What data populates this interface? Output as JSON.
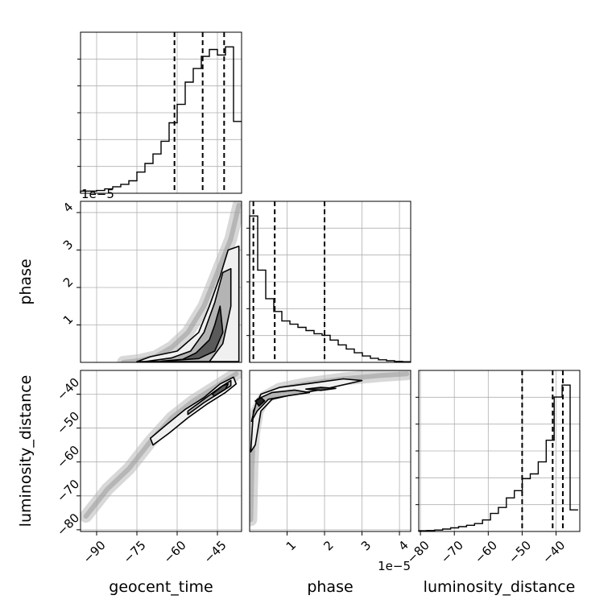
{
  "chart_data": {
    "type": "corner",
    "parameters": [
      "geocent_time",
      "phase",
      "luminosity_distance"
    ],
    "axis_labels": {
      "geocent_time": "geocent_time",
      "phase": "phase",
      "luminosity_distance": "luminosity_distance"
    },
    "ranges": {
      "geocent_time": [
        -96,
        -36
      ],
      "phase": [
        0,
        4.3e-05
      ],
      "luminosity_distance": [
        -80.5,
        -33
      ]
    },
    "ticks": {
      "geocent_time": [
        -90,
        -75,
        -60,
        -45
      ],
      "phase": [
        1e-05,
        2e-05,
        3e-05,
        4e-05
      ],
      "luminosity_distance": [
        -80,
        -70,
        -60,
        -50,
        -40
      ]
    },
    "tick_labels": {
      "geocent_time": [
        "−90",
        "−75",
        "−60",
        "−45"
      ],
      "phase": [
        "1",
        "2",
        "3",
        "4"
      ],
      "luminosity_distance": [
        "−80",
        "−70",
        "−60",
        "−50",
        "−40"
      ]
    },
    "offset_labels": {
      "phase_x": "1e−5",
      "phase_y": "1e−5"
    },
    "quantiles": {
      "geocent_time": [
        -61,
        -50.5,
        -42.5
      ],
      "phase": [
        1e-06,
        6.7e-06,
        2e-05
      ],
      "luminosity_distance": [
        -50,
        -41,
        -38
      ]
    },
    "histograms": {
      "geocent_time": {
        "edges": [
          -96,
          -93,
          -90,
          -87,
          -84,
          -81,
          -78,
          -75,
          -72,
          -69,
          -66,
          -63,
          -60,
          -57,
          -54,
          -51,
          -48,
          -45,
          -42,
          -39,
          -36
        ],
        "counts": [
          0.8,
          0.8,
          1.0,
          1.6,
          2.4,
          3.3,
          4.6,
          7.8,
          11.0,
          14.5,
          19.2,
          26.0,
          32.8,
          41.0,
          46.0,
          50.5,
          53.0,
          51.0,
          54.0,
          26.5
        ]
      },
      "phase": {
        "edges": [
          0,
          2.15e-06,
          4.3e-06,
          6.45e-06,
          8.6e-06,
          1.075e-05,
          1.29e-05,
          1.505e-05,
          1.72e-05,
          1.935e-05,
          2.15e-05,
          2.365e-05,
          2.58e-05,
          2.795e-05,
          3.01e-05,
          3.225e-05,
          3.44e-05,
          3.655e-05,
          3.87e-05,
          4.085e-05,
          4.3e-05
        ],
        "counts": [
          46.0,
          29.0,
          20.0,
          16.0,
          13.0,
          12.0,
          11.0,
          10.0,
          9.0,
          8.5,
          7.0,
          5.5,
          4.2,
          3.0,
          2.0,
          1.3,
          0.8,
          0.5,
          0.3,
          0.2
        ]
      },
      "luminosity_distance": {
        "edges": [
          -80.5,
          -78.15,
          -75.8,
          -73.45,
          -71.1,
          -68.75,
          -66.4,
          -64.05,
          -61.7,
          -59.35,
          -57.0,
          -54.65,
          -52.3,
          -49.95,
          -47.6,
          -45.25,
          -42.9,
          -40.55,
          -38.2,
          -35.85,
          -33.5
        ],
        "counts": [
          0.3,
          0.4,
          0.6,
          1.0,
          1.5,
          2.0,
          2.6,
          3.3,
          4.8,
          7.5,
          10.0,
          14.0,
          17.0,
          22.0,
          24.0,
          29.0,
          38.0,
          56.0,
          61.0,
          9.0
        ]
      }
    },
    "contours_2d": {
      "phase_vs_geocent_time": [
        [
          [
            -75,
            2e-07
          ],
          [
            -70,
            1.5e-06
          ],
          [
            -60,
            3e-06
          ],
          [
            -52,
            8e-06
          ],
          [
            -48,
            1.5e-05
          ],
          [
            -44,
            2.3e-05
          ],
          [
            -41,
            3e-05
          ],
          [
            -37,
            3.1e-05
          ],
          [
            -37,
            2e-07
          ]
        ],
        [
          [
            -72,
            2e-07
          ],
          [
            -62,
            1.2e-06
          ],
          [
            -55,
            3e-06
          ],
          [
            -50,
            8e-06
          ],
          [
            -46,
            1.6e-05
          ],
          [
            -43,
            2.4e-05
          ],
          [
            -40,
            2.5e-05
          ],
          [
            -40,
            1.5e-05
          ],
          [
            -43,
            5e-06
          ],
          [
            -48,
            2e-07
          ]
        ],
        [
          [
            -66,
            3e-07
          ],
          [
            -58,
            8e-07
          ],
          [
            -53,
            2.5e-06
          ],
          [
            -48,
            6e-06
          ],
          [
            -46,
            1e-05
          ],
          [
            -44,
            1.5e-05
          ],
          [
            -43,
            8e-06
          ],
          [
            -46,
            3e-06
          ],
          [
            -52,
            1e-06
          ]
        ]
      ],
      "luminosity_distance_vs_geocent_time": [
        [
          [
            -70,
            -53
          ],
          [
            -64,
            -49
          ],
          [
            -57,
            -44.5
          ],
          [
            -50,
            -41
          ],
          [
            -44,
            -37
          ],
          [
            -39,
            -35
          ],
          [
            -38,
            -37
          ],
          [
            -42,
            -39.5
          ],
          [
            -49,
            -43
          ],
          [
            -56,
            -47
          ],
          [
            -63,
            -51.5
          ],
          [
            -69,
            -55
          ]
        ],
        [
          [
            -56,
            -45
          ],
          [
            -50,
            -41.5
          ],
          [
            -44,
            -38
          ],
          [
            -40,
            -36
          ],
          [
            -40,
            -37.5
          ],
          [
            -44,
            -39.5
          ],
          [
            -50,
            -42.5
          ],
          [
            -56,
            -46
          ]
        ],
        [
          [
            -47,
            -40
          ],
          [
            -43,
            -37.5
          ],
          [
            -41,
            -37
          ],
          [
            -42,
            -38.5
          ],
          [
            -46,
            -40.5
          ]
        ]
      ],
      "luminosity_distance_vs_phase": [
        [
          [
            3e-07,
            -57
          ],
          [
            1e-06,
            -45
          ],
          [
            3e-06,
            -40
          ],
          [
            8e-06,
            -38
          ],
          [
            1.5e-05,
            -37
          ],
          [
            2.5e-05,
            -35.5
          ],
          [
            3e-05,
            -36
          ],
          [
            2e-05,
            -38.5
          ],
          [
            1.2e-05,
            -40
          ],
          [
            6e-06,
            -41.5
          ],
          [
            3e-06,
            -45
          ],
          [
            1.5e-06,
            -55
          ]
        ],
        [
          [
            5e-07,
            -48
          ],
          [
            2e-06,
            -41.5
          ],
          [
            6e-06,
            -39.5
          ],
          [
            1.2e-05,
            -38.8
          ],
          [
            1.6e-05,
            -39.5
          ],
          [
            1e-05,
            -40.5
          ],
          [
            5e-06,
            -41.5
          ],
          [
            2e-06,
            -45
          ]
        ],
        [
          [
            1.5e-05,
            -38.5
          ],
          [
            1.9e-05,
            -38
          ],
          [
            2.3e-05,
            -38.3
          ],
          [
            1.9e-05,
            -38.9
          ]
        ],
        [
          [
            1.5e-06,
            -42
          ],
          [
            3e-06,
            -41
          ],
          [
            4e-06,
            -42
          ],
          [
            2.5e-06,
            -43.5
          ]
        ]
      ]
    },
    "scatter_bands": {
      "phase_vs_geocent_time": [
        [
          -80,
          0
        ],
        [
          -74,
          5e-07
        ],
        [
          -68,
          1.5e-06
        ],
        [
          -62,
          4e-06
        ],
        [
          -56,
          8e-06
        ],
        [
          -50,
          1.5e-05
        ],
        [
          -45,
          2.4e-05
        ],
        [
          -40,
          3.3e-05
        ],
        [
          -37,
          4.2e-05
        ]
      ],
      "luminosity_distance_vs_geocent_time": [
        [
          -94,
          -76
        ],
        [
          -86,
          -68
        ],
        [
          -78,
          -62
        ],
        [
          -70,
          -54
        ],
        [
          -62,
          -47
        ],
        [
          -54,
          -42
        ],
        [
          -46,
          -38
        ],
        [
          -38,
          -34
        ]
      ],
      "luminosity_distance_vs_phase": [
        [
          3e-07,
          -77
        ],
        [
          6e-07,
          -62
        ],
        [
          1e-06,
          -52
        ],
        [
          2e-06,
          -45
        ],
        [
          4e-06,
          -41
        ],
        [
          8e-06,
          -38.5
        ],
        [
          1.5e-05,
          -37
        ],
        [
          2.5e-05,
          -35.5
        ],
        [
          3.5e-05,
          -34.5
        ],
        [
          4.2e-05,
          -34
        ]
      ]
    }
  }
}
